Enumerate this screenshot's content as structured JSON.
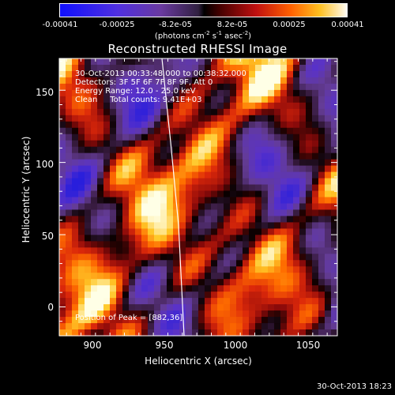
{
  "colorbar": {
    "ticks": [
      "-0.00041",
      "-0.00025",
      "-8.2e-05",
      "8.2e-05",
      "0.00025",
      "0.00041"
    ],
    "label_main": "(photons cm",
    "label_e1": "-2",
    "label_s": " s",
    "label_e2": "-1",
    "label_a": " asec",
    "label_e3": "-2",
    "label_end": ")"
  },
  "annotations": {
    "line1": "30-Oct-2013 00:33:48.000 to 00:38:32.000",
    "line2": "Detectors: 3F 5F 6F 7F 8F 9F, Att 0",
    "line3": "Energy Range: 12.0 - 25.0 keV",
    "line4": "Clean     Total counts: 9.41E+03",
    "peak": "Position of Peak = [882,36]"
  },
  "footer": "30-Oct-2013 18:23",
  "chart_data": {
    "type": "heatmap",
    "title": "Reconstructed RHESSI Image",
    "xlabel": "Heliocentric X (arcsec)",
    "ylabel": "Heliocentric Y (arcsec)",
    "xlim": [
      880,
      1072
    ],
    "ylim": [
      -20,
      172
    ],
    "x_ticks": [
      900,
      950,
      1000,
      1050
    ],
    "y_ticks": [
      0,
      50,
      100,
      150
    ],
    "value_range": [
      -0.00041,
      0.00041
    ],
    "peak_position": [
      882,
      36
    ],
    "colors": {
      "low": "#0000ff",
      "mid_low": "#8040c0",
      "zero": "#000000",
      "mid_high": "#d02020",
      "high_orange": "#ff8000",
      "high": "#ffffff"
    }
  }
}
